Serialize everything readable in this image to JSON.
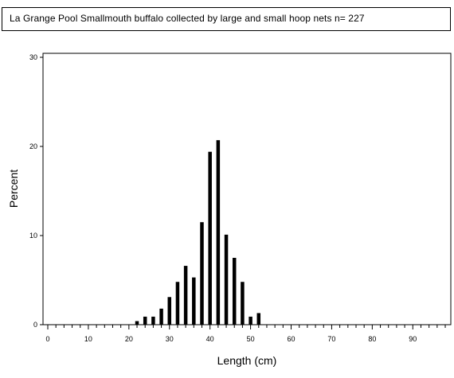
{
  "chart_data": {
    "type": "bar",
    "title": "La Grange Pool Smallmouth buffalo collected by large and small hoop nets   n= 227",
    "xlabel": "Length (cm)",
    "ylabel": "Percent",
    "xlim": [
      0,
      99
    ],
    "ylim": [
      0,
      30
    ],
    "x_ticks": [
      0,
      10,
      20,
      30,
      40,
      50,
      60,
      70,
      80,
      90
    ],
    "y_ticks": [
      0,
      10,
      20,
      30
    ],
    "x_minor_step": 2,
    "grid": false,
    "legend": "none",
    "bar_color": "#000000",
    "x": [
      22,
      24,
      26,
      28,
      30,
      32,
      34,
      36,
      38,
      40,
      42,
      44,
      46,
      48,
      50,
      52
    ],
    "values": [
      0.4,
      0.9,
      0.9,
      1.8,
      3.1,
      4.8,
      6.6,
      5.3,
      11.5,
      19.4,
      20.7,
      10.1,
      7.5,
      4.8,
      0.9,
      1.3
    ]
  }
}
